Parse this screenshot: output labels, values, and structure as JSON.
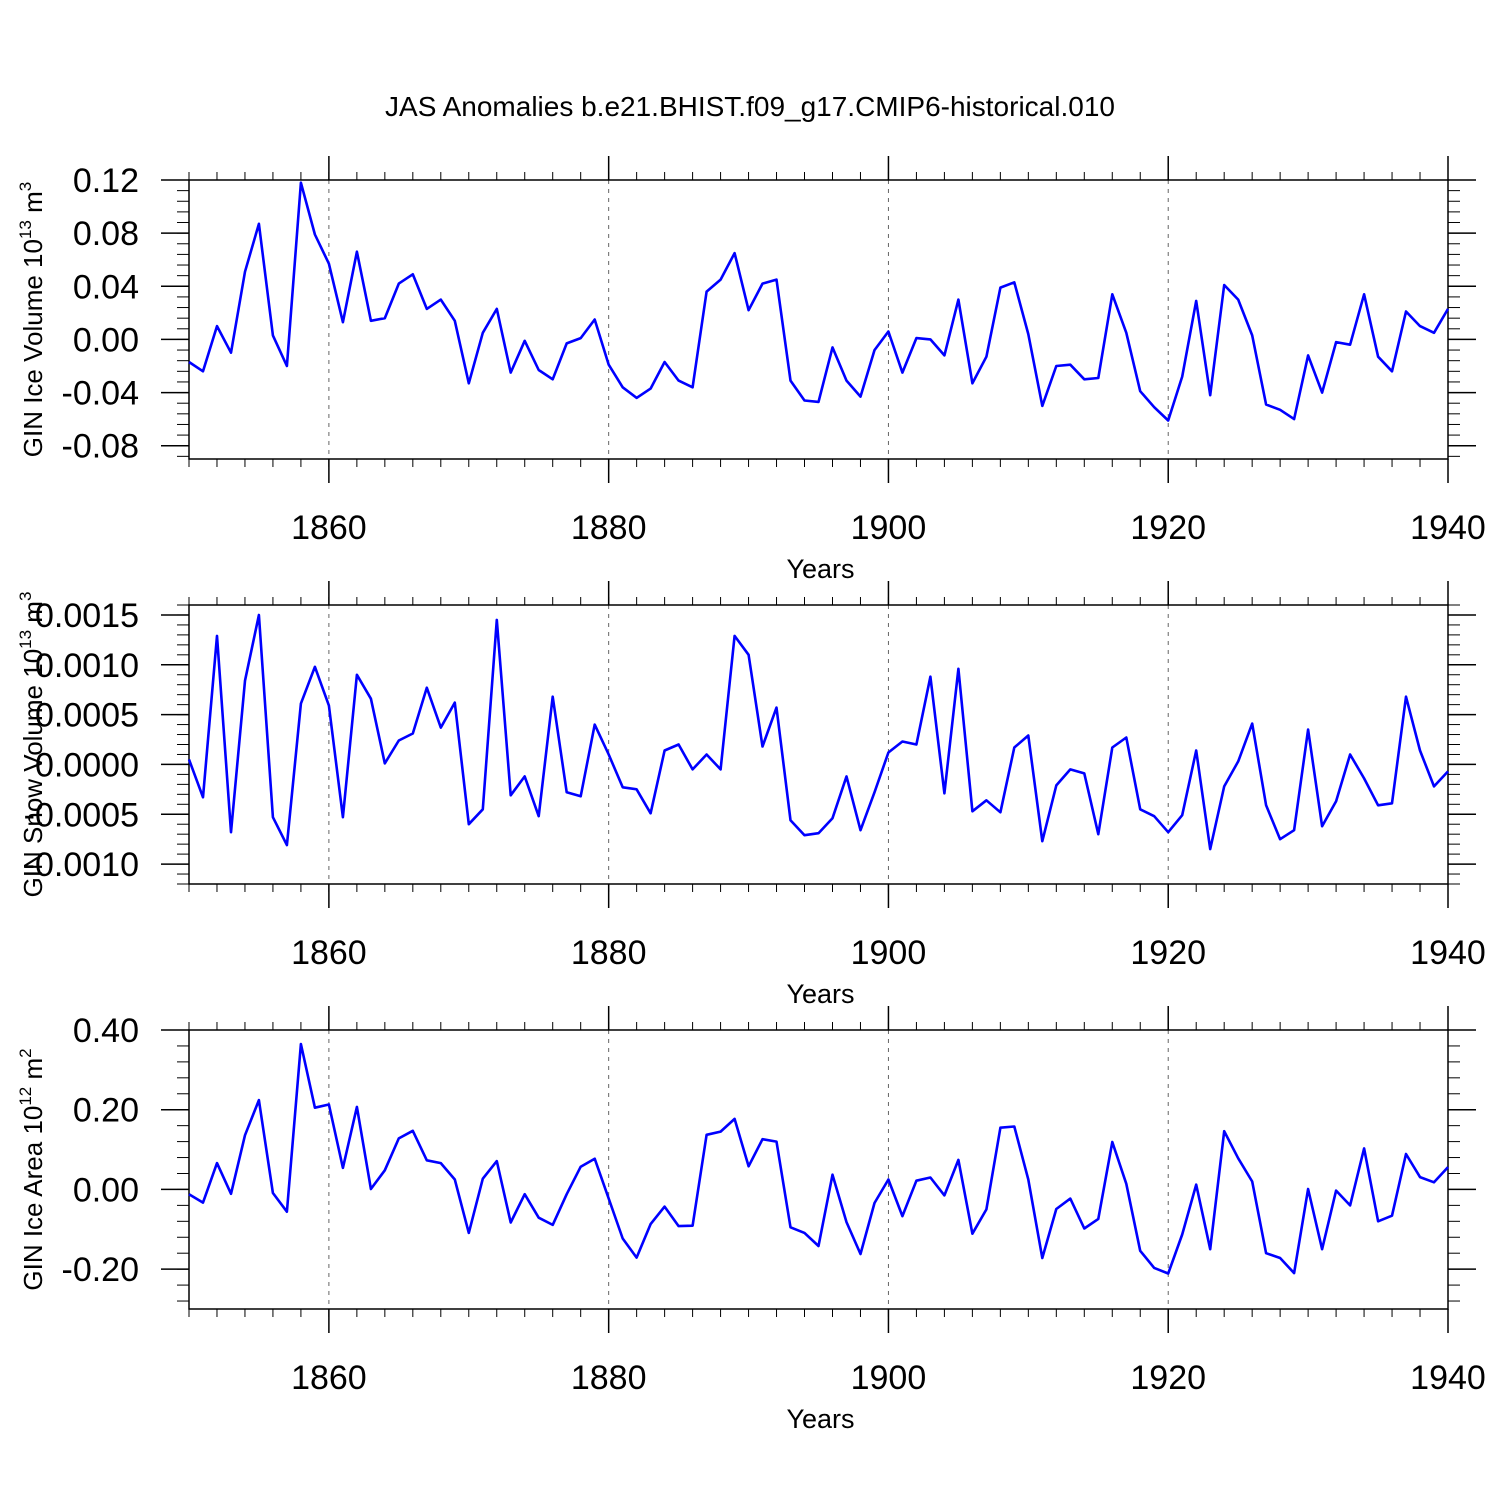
{
  "title": "JAS Anomalies b.e21.BHIST.f09_g17.CMIP6-historical.010",
  "colors": {
    "series": "#0000ff",
    "axis": "#000000",
    "grid": "#000000"
  },
  "chart_data": [
    {
      "type": "line",
      "panel": "top",
      "title": "",
      "xlabel": "Years",
      "ylabel": "GIN Ice Volume 10",
      "ylabel_exp": "13",
      "ylabel_unit": " m",
      "ylabel_unit_exp": "3",
      "xlim": [
        1850,
        1940
      ],
      "ylim": [
        -0.09,
        0.12
      ],
      "yticks": [
        0.12,
        0.08,
        0.04,
        0.0,
        -0.04,
        -0.08
      ],
      "ytick_labels": [
        "0.12",
        "0.08",
        "0.04",
        "0.00",
        "-0.04",
        "-0.08"
      ],
      "xticks": [
        1860,
        1880,
        1900,
        1920,
        1940
      ],
      "xtick_labels": [
        "1860",
        "1880",
        "1900",
        "1920",
        "1940"
      ],
      "series": [
        {
          "name": "GIN Ice Volume",
          "x": [
            1850,
            1851,
            1852,
            1853,
            1854,
            1855,
            1856,
            1857,
            1858,
            1859,
            1860,
            1861,
            1862,
            1863,
            1864,
            1865,
            1866,
            1867,
            1868,
            1869,
            1870,
            1871,
            1872,
            1873,
            1874,
            1875,
            1876,
            1877,
            1878,
            1879,
            1880,
            1881,
            1882,
            1883,
            1884,
            1885,
            1886,
            1887,
            1888,
            1889,
            1890,
            1891,
            1892,
            1893,
            1894,
            1895,
            1896,
            1897,
            1898,
            1899,
            1900,
            1901,
            1902,
            1903,
            1904,
            1905,
            1906,
            1907,
            1908,
            1909,
            1910,
            1911,
            1912,
            1913,
            1914,
            1915,
            1916,
            1917,
            1918,
            1919,
            1920,
            1921,
            1922,
            1923,
            1924,
            1925,
            1926,
            1927,
            1928,
            1929,
            1930,
            1931,
            1932,
            1933,
            1934,
            1935,
            1936,
            1937,
            1938,
            1939,
            1940
          ],
          "values": [
            -0.017,
            -0.024,
            0.01,
            -0.01,
            0.051,
            0.087,
            0.003,
            -0.02,
            0.118,
            0.079,
            0.057,
            0.013,
            0.066,
            0.014,
            0.016,
            0.042,
            0.049,
            0.023,
            0.03,
            0.014,
            -0.033,
            0.005,
            0.023,
            -0.025,
            -0.001,
            -0.023,
            -0.03,
            -0.003,
            0.001,
            0.015,
            -0.019,
            -0.036,
            -0.044,
            -0.037,
            -0.017,
            -0.031,
            -0.036,
            0.036,
            0.045,
            0.065,
            0.022,
            0.042,
            0.045,
            -0.031,
            -0.046,
            -0.047,
            -0.006,
            -0.031,
            -0.043,
            -0.008,
            0.006,
            -0.025,
            0.001,
            0.0,
            -0.012,
            0.03,
            -0.033,
            -0.013,
            0.039,
            0.043,
            0.004,
            -0.05,
            -0.02,
            -0.019,
            -0.03,
            -0.029,
            0.034,
            0.005,
            -0.039,
            -0.051,
            -0.061,
            -0.028,
            0.029,
            -0.042,
            0.041,
            0.03,
            0.003,
            -0.049,
            -0.053,
            -0.06,
            -0.012,
            -0.04,
            -0.002,
            -0.004,
            0.034,
            -0.013,
            -0.024,
            0.021,
            0.01,
            0.005,
            0.023
          ]
        }
      ]
    },
    {
      "type": "line",
      "panel": "middle",
      "title": "",
      "xlabel": "Years",
      "ylabel": "GIN Snow Volume 10",
      "ylabel_exp": "13",
      "ylabel_unit": " m",
      "ylabel_unit_exp": "3",
      "xlim": [
        1850,
        1940
      ],
      "ylim": [
        -0.0012,
        0.0016
      ],
      "yticks": [
        0.0015,
        0.001,
        0.0005,
        0.0,
        -0.0005,
        -0.001
      ],
      "ytick_labels": [
        "0.0015",
        "0.0010",
        "0.0005",
        "0.0000",
        "-0.0005",
        "-0.0010"
      ],
      "xticks": [
        1860,
        1880,
        1900,
        1920,
        1940
      ],
      "xtick_labels": [
        "1860",
        "1880",
        "1900",
        "1920",
        "1940"
      ],
      "series": [
        {
          "name": "GIN Snow Volume",
          "x": [
            1850,
            1851,
            1852,
            1853,
            1854,
            1855,
            1856,
            1857,
            1858,
            1859,
            1860,
            1861,
            1862,
            1863,
            1864,
            1865,
            1866,
            1867,
            1868,
            1869,
            1870,
            1871,
            1872,
            1873,
            1874,
            1875,
            1876,
            1877,
            1878,
            1879,
            1880,
            1881,
            1882,
            1883,
            1884,
            1885,
            1886,
            1887,
            1888,
            1889,
            1890,
            1891,
            1892,
            1893,
            1894,
            1895,
            1896,
            1897,
            1898,
            1899,
            1900,
            1901,
            1902,
            1903,
            1904,
            1905,
            1906,
            1907,
            1908,
            1909,
            1910,
            1911,
            1912,
            1913,
            1914,
            1915,
            1916,
            1917,
            1918,
            1919,
            1920,
            1921,
            1922,
            1923,
            1924,
            1925,
            1926,
            1927,
            1928,
            1929,
            1930,
            1931,
            1932,
            1933,
            1934,
            1935,
            1936,
            1937,
            1938,
            1939,
            1940
          ],
          "values": [
            5e-05,
            -0.00033,
            0.00129,
            -0.00068,
            0.00084,
            0.0015,
            -0.00053,
            -0.00081,
            0.00061,
            0.00098,
            0.00059,
            -0.00053,
            0.0009,
            0.00066,
            1e-05,
            0.00024,
            0.00031,
            0.00077,
            0.00037,
            0.00062,
            -0.0006,
            -0.00045,
            0.00145,
            -0.00031,
            -0.00012,
            -0.00052,
            0.00068,
            -0.00028,
            -0.00032,
            0.0004,
            0.0001,
            -0.00023,
            -0.00025,
            -0.00049,
            0.00014,
            0.0002,
            -5e-05,
            0.0001,
            -5e-05,
            0.00129,
            0.0011,
            0.00018,
            0.00057,
            -0.00056,
            -0.00071,
            -0.00069,
            -0.00054,
            -0.00012,
            -0.00066,
            -0.00028,
            0.00012,
            0.00023,
            0.0002,
            0.00088,
            -0.00029,
            0.00096,
            -0.00047,
            -0.00036,
            -0.00048,
            0.00017,
            0.00029,
            -0.00077,
            -0.00021,
            -5e-05,
            -9e-05,
            -0.0007,
            0.00017,
            0.00027,
            -0.00045,
            -0.00052,
            -0.00068,
            -0.00051,
            0.00014,
            -0.00085,
            -0.00022,
            3e-05,
            0.00041,
            -0.00041,
            -0.00075,
            -0.00066,
            0.00035,
            -0.00062,
            -0.00037,
            0.0001,
            -0.00014,
            -0.00041,
            -0.00039,
            0.00068,
            0.00014,
            -0.00022,
            -7e-05
          ]
        }
      ]
    },
    {
      "type": "line",
      "panel": "bottom",
      "title": "",
      "xlabel": "Years",
      "ylabel": "GIN Ice Area 10",
      "ylabel_exp": "12",
      "ylabel_unit": " m",
      "ylabel_unit_exp": "2",
      "xlim": [
        1850,
        1940
      ],
      "ylim": [
        -0.3,
        0.4
      ],
      "yticks": [
        0.4,
        0.2,
        0.0,
        -0.2
      ],
      "ytick_labels": [
        "0.40",
        "0.20",
        "0.00",
        "-0.20"
      ],
      "xticks": [
        1860,
        1880,
        1900,
        1920,
        1940
      ],
      "xtick_labels": [
        "1860",
        "1880",
        "1900",
        "1920",
        "1940"
      ],
      "series": [
        {
          "name": "GIN Ice Area",
          "x": [
            1850,
            1851,
            1852,
            1853,
            1854,
            1855,
            1856,
            1857,
            1858,
            1859,
            1860,
            1861,
            1862,
            1863,
            1864,
            1865,
            1866,
            1867,
            1868,
            1869,
            1870,
            1871,
            1872,
            1873,
            1874,
            1875,
            1876,
            1877,
            1878,
            1879,
            1880,
            1881,
            1882,
            1883,
            1884,
            1885,
            1886,
            1887,
            1888,
            1889,
            1890,
            1891,
            1892,
            1893,
            1894,
            1895,
            1896,
            1897,
            1898,
            1899,
            1900,
            1901,
            1902,
            1903,
            1904,
            1905,
            1906,
            1907,
            1908,
            1909,
            1910,
            1911,
            1912,
            1913,
            1914,
            1915,
            1916,
            1917,
            1918,
            1919,
            1920,
            1921,
            1922,
            1923,
            1924,
            1925,
            1926,
            1927,
            1928,
            1929,
            1930,
            1931,
            1932,
            1933,
            1934,
            1935,
            1936,
            1937,
            1938,
            1939,
            1940
          ],
          "values": [
            -0.012,
            -0.033,
            0.066,
            -0.011,
            0.136,
            0.224,
            -0.009,
            -0.056,
            0.365,
            0.205,
            0.213,
            0.054,
            0.207,
            0.001,
            0.048,
            0.128,
            0.147,
            0.073,
            0.066,
            0.025,
            -0.109,
            0.027,
            0.071,
            -0.083,
            -0.012,
            -0.071,
            -0.089,
            -0.012,
            0.057,
            0.077,
            -0.023,
            -0.123,
            -0.171,
            -0.087,
            -0.043,
            -0.092,
            -0.091,
            0.137,
            0.145,
            0.177,
            0.058,
            0.126,
            0.12,
            -0.095,
            -0.109,
            -0.142,
            0.037,
            -0.082,
            -0.162,
            -0.034,
            0.025,
            -0.067,
            0.022,
            0.03,
            -0.015,
            0.074,
            -0.111,
            -0.05,
            0.155,
            0.158,
            0.025,
            -0.172,
            -0.049,
            -0.023,
            -0.098,
            -0.074,
            0.119,
            0.014,
            -0.154,
            -0.197,
            -0.211,
            -0.113,
            0.012,
            -0.15,
            0.146,
            0.078,
            0.02,
            -0.16,
            -0.172,
            -0.21,
            0.001,
            -0.15,
            -0.003,
            -0.04,
            0.103,
            -0.08,
            -0.066,
            0.089,
            0.031,
            0.018,
            0.056
          ]
        }
      ]
    }
  ]
}
